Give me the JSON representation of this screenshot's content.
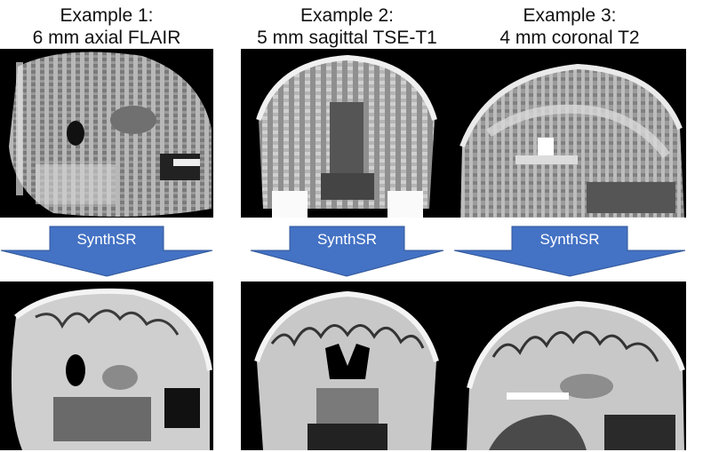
{
  "examples": [
    {
      "title_line1": "Example 1:",
      "title_line2": "6 mm axial FLAIR",
      "arrow_label": "SynthSR"
    },
    {
      "title_line1": "Example 2:",
      "title_line2": "5 mm sagittal TSE-T1",
      "arrow_label": "SynthSR"
    },
    {
      "title_line1": "Example 3:",
      "title_line2": "4 mm coronal T2",
      "arrow_label": "SynthSR"
    }
  ],
  "colors": {
    "arrow_fill": "#4472c4",
    "arrow_stroke": "#2f5597",
    "scan_background": "#000000"
  }
}
